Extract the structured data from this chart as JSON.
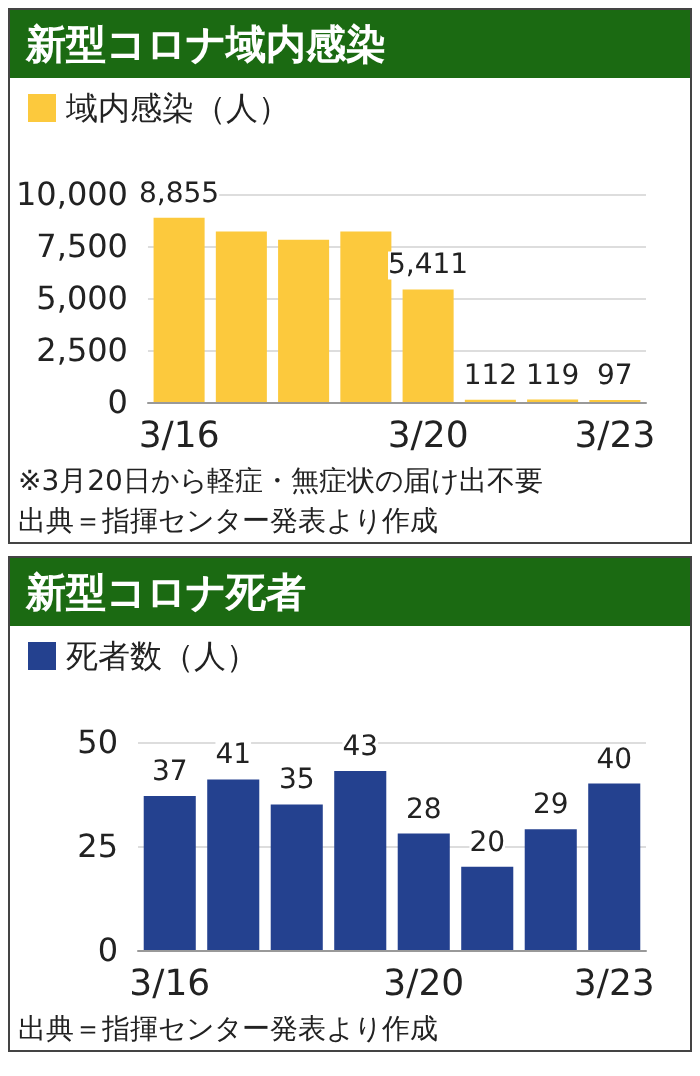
{
  "chart_data": [
    {
      "type": "bar",
      "title": "新型コロナ域内感染",
      "categories": [
        "3/16",
        null,
        null,
        null,
        "3/20",
        null,
        null,
        "3/23"
      ],
      "series": [
        {
          "name": "域内感染（人）",
          "color": "#fcc93d",
          "values": [
            8855,
            8200,
            7800,
            8200,
            5411,
            112,
            119,
            97
          ],
          "value_labels": [
            "8,855",
            null,
            null,
            null,
            "5,411",
            "112",
            "119",
            "97"
          ]
        }
      ],
      "ylim": [
        0,
        10000
      ],
      "yticks": [
        0,
        {
          "value": 2500,
          "label": "2,500"
        },
        {
          "value": 5000,
          "label": "5,000"
        },
        {
          "value": 7500,
          "label": "7,500"
        },
        {
          "value": 10000,
          "label": "10,000"
        }
      ],
      "grid": "y",
      "legend": "top left",
      "annotations": [
        "※3月20日から軽症・無症状の届け出不要",
        "出典＝指揮センター発表より作成"
      ]
    },
    {
      "type": "bar",
      "title": "新型コロナ死者",
      "categories": [
        "3/16",
        null,
        null,
        null,
        "3/20",
        null,
        null,
        "3/23"
      ],
      "series": [
        {
          "name": "死者数（人）",
          "color": "#24418f",
          "values": [
            37,
            41,
            35,
            43,
            28,
            20,
            29,
            40
          ]
        }
      ],
      "ylim": [
        0,
        50
      ],
      "yticks": [
        0,
        25,
        50
      ],
      "grid": "y",
      "legend": "top left",
      "data_labels": true,
      "annotations": [
        "出典＝指揮センター発表より作成"
      ]
    }
  ]
}
